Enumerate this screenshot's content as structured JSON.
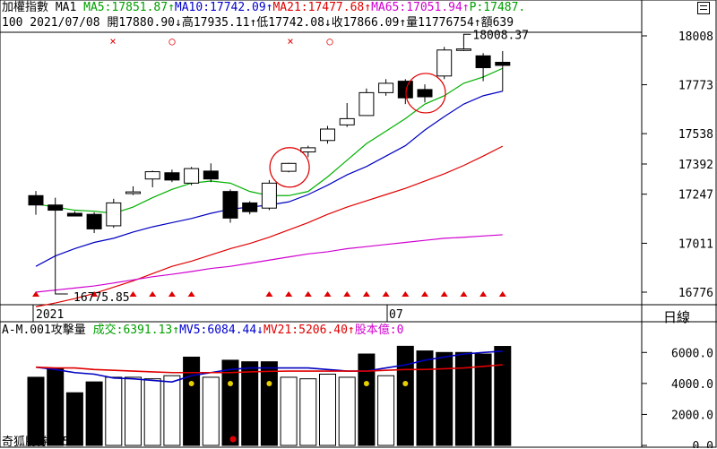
{
  "header1": {
    "index_name": "加權指數",
    "ma_label": "MA1",
    "ma5": "MA5:17851.87↑",
    "ma10": "MA10:17742.09↑",
    "ma21": "MA21:17477.68↑",
    "ma65": "MA65:17051.94↑",
    "p": "P:17487."
  },
  "header2": {
    "text": "100 2021/07/08 開17880.90↓高17935.11↑低17742.08↓收17866.09↑量11776754↑額639"
  },
  "sub_header": {
    "title": "A-M.001攻擊量",
    "vol": "成交:6391.13↑",
    "mv5": "MV5:6084.44↓",
    "mv21": "MV21:5206.40↑",
    "shares": "股本億:0"
  },
  "period_label": "日線",
  "footer": "奇狐勝券 v5.2",
  "chart_data": [
    {
      "type": "candlestick",
      "x_labels": [
        "2021",
        "07"
      ],
      "y_ticks": [
        "18008",
        "17773",
        "17538",
        "17392",
        "17247",
        "17011",
        "16776"
      ],
      "annotations": {
        "high": "18008.37",
        "low": "16775.85"
      },
      "candles": [
        {
          "o": 17240,
          "h": 17262,
          "l": 17148,
          "c": 17195
        },
        {
          "o": 17195,
          "h": 17230,
          "l": 16790,
          "c": 17170
        },
        {
          "o": 17155,
          "h": 17165,
          "l": 17140,
          "c": 17142
        },
        {
          "o": 17150,
          "h": 17160,
          "l": 17060,
          "c": 17080
        },
        {
          "o": 17095,
          "h": 17225,
          "l": 17085,
          "c": 17205
        },
        {
          "o": 17250,
          "h": 17285,
          "l": 17243,
          "c": 17258
        },
        {
          "o": 17320,
          "h": 17360,
          "l": 17280,
          "c": 17355
        },
        {
          "o": 17350,
          "h": 17365,
          "l": 17305,
          "c": 17315
        },
        {
          "o": 17300,
          "h": 17378,
          "l": 17290,
          "c": 17370
        },
        {
          "o": 17358,
          "h": 17395,
          "l": 17305,
          "c": 17320
        },
        {
          "o": 17260,
          "h": 17270,
          "l": 17110,
          "c": 17132
        },
        {
          "o": 17205,
          "h": 17213,
          "l": 17150,
          "c": 17163
        },
        {
          "o": 17180,
          "h": 17315,
          "l": 17170,
          "c": 17300
        },
        {
          "o": 17357,
          "h": 17398,
          "l": 17352,
          "c": 17395
        },
        {
          "o": 17450,
          "h": 17480,
          "l": 17425,
          "c": 17470
        },
        {
          "o": 17505,
          "h": 17575,
          "l": 17490,
          "c": 17560
        },
        {
          "o": 17580,
          "h": 17685,
          "l": 17570,
          "c": 17610
        },
        {
          "o": 17625,
          "h": 17755,
          "l": 17625,
          "c": 17735
        },
        {
          "o": 17735,
          "h": 17800,
          "l": 17720,
          "c": 17780
        },
        {
          "o": 17790,
          "h": 17800,
          "l": 17680,
          "c": 17710
        },
        {
          "o": 17750,
          "h": 17775,
          "l": 17688,
          "c": 17715
        },
        {
          "o": 17815,
          "h": 17955,
          "l": 17800,
          "c": 17940
        },
        {
          "o": 17938,
          "h": 17955,
          "l": 17935,
          "c": 17945
        },
        {
          "o": 17912,
          "h": 17925,
          "l": 17790,
          "c": 17855
        },
        {
          "o": 17880.9,
          "h": 17935.11,
          "l": 17742.08,
          "c": 17866.09
        }
      ],
      "series": [
        {
          "name": "MA5",
          "color": "#00b000",
          "values": [
            17200,
            17185,
            17170,
            17165,
            17155,
            17185,
            17230,
            17270,
            17300,
            17310,
            17300,
            17260,
            17240,
            17240,
            17260,
            17330,
            17410,
            17490,
            17550,
            17610,
            17680,
            17720,
            17780,
            17810,
            17851.87
          ]
        },
        {
          "name": "MA10",
          "color": "#0000c0",
          "values": [
            16900,
            16950,
            16985,
            17015,
            17035,
            17065,
            17090,
            17110,
            17130,
            17155,
            17175,
            17185,
            17195,
            17210,
            17245,
            17290,
            17340,
            17380,
            17430,
            17480,
            17555,
            17620,
            17680,
            17720,
            17742.09
          ]
        },
        {
          "name": "MA21",
          "color": "#e00000",
          "values": [
            16706,
            16724,
            16745,
            16770,
            16800,
            16830,
            16865,
            16900,
            16925,
            16955,
            16985,
            17010,
            17040,
            17075,
            17110,
            17150,
            17185,
            17215,
            17245,
            17275,
            17310,
            17345,
            17385,
            17430,
            17477.68
          ]
        },
        {
          "name": "MA65",
          "color": "#d000d0",
          "values": [
            16776,
            16786,
            16796,
            16806,
            16820,
            16835,
            16850,
            16862,
            16875,
            16890,
            16900,
            16915,
            16930,
            16945,
            16960,
            16970,
            16985,
            16995,
            17005,
            17015,
            17025,
            17035,
            17040,
            17046,
            17051.94
          ]
        }
      ],
      "top_markers": {
        "x_positions": [
          5,
          8,
          14,
          16
        ],
        "symbols": [
          "×",
          "○",
          "×",
          "○"
        ]
      },
      "bottom_markers_indices": [
        0,
        3,
        5,
        6,
        7,
        8,
        12,
        13,
        14,
        15,
        16,
        17,
        18,
        19,
        20,
        21,
        22,
        23,
        24
      ],
      "circles_on_indices": [
        13,
        20
      ]
    },
    {
      "type": "bar",
      "y_ticks": [
        "6000.0",
        "4000.0",
        "2000.0",
        "0.0"
      ],
      "ylim": [
        0,
        7000
      ],
      "values": [
        4400,
        5000,
        3400,
        4100,
        4400,
        4400,
        4300,
        4500,
        5700,
        4400,
        5500,
        5400,
        5400,
        4400,
        4300,
        4600,
        4400,
        5900,
        4500,
        6400,
        6100,
        6000,
        6000,
        5900,
        6391.13
      ],
      "filled": [
        true,
        true,
        true,
        true,
        false,
        false,
        false,
        false,
        true,
        false,
        true,
        true,
        true,
        false,
        false,
        false,
        false,
        true,
        false,
        true,
        true,
        true,
        true,
        true,
        true
      ],
      "yellow_dots": [
        8,
        10,
        12,
        17,
        19
      ],
      "red_dot_index": 10,
      "series": [
        {
          "name": "MV5",
          "color": "#0000c0",
          "values": [
            5050,
            4900,
            4700,
            4600,
            4350,
            4300,
            4200,
            4100,
            4500,
            4700,
            4900,
            5000,
            5000,
            5000,
            5000,
            4900,
            4800,
            4800,
            5000,
            5200,
            5500,
            5700,
            5900,
            6000,
            6084.44
          ]
        },
        {
          "name": "MV21",
          "color": "#e00000",
          "values": [
            5050,
            5000,
            5000,
            4900,
            4850,
            4800,
            4750,
            4700,
            4700,
            4700,
            4700,
            4750,
            4780,
            4800,
            4800,
            4800,
            4800,
            4800,
            4850,
            4900,
            4900,
            4950,
            5000,
            5100,
            5206.4
          ]
        }
      ]
    }
  ]
}
